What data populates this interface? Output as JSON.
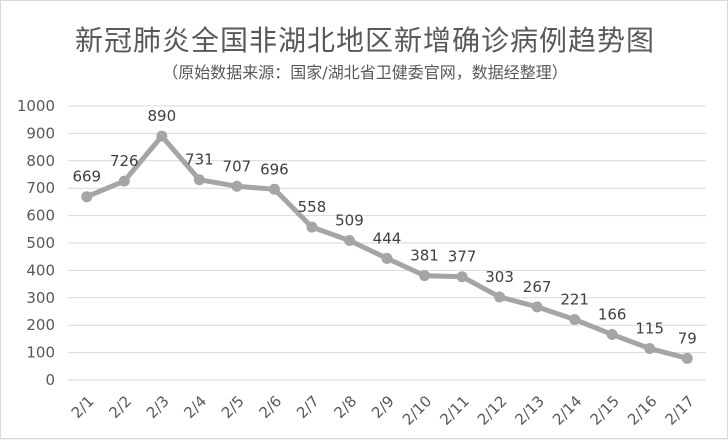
{
  "chart_data": {
    "type": "line",
    "title": "新冠肺炎全国非湖北地区新增确诊病例趋势图",
    "subtitle": "（原始数据来源：国家/湖北省卫健委官网，数据经整理）",
    "categories": [
      "2/1",
      "2/2",
      "2/3",
      "2/4",
      "2/5",
      "2/6",
      "2/7",
      "2/8",
      "2/9",
      "2/10",
      "2/11",
      "2/12",
      "2/13",
      "2/14",
      "2/15",
      "2/16",
      "2/17"
    ],
    "series": [
      {
        "values": [
          669,
          726,
          890,
          731,
          707,
          696,
          558,
          509,
          444,
          381,
          377,
          303,
          267,
          221,
          166,
          115,
          79
        ]
      }
    ],
    "ylim": [
      0,
      1000
    ],
    "yticks": [
      0,
      100,
      200,
      300,
      400,
      500,
      600,
      700,
      800,
      900,
      1000
    ],
    "grid": true,
    "legend": "none",
    "colors": {
      "line": "#a5a5a5",
      "grid": "#d9d9d9",
      "text": "#595959"
    }
  }
}
